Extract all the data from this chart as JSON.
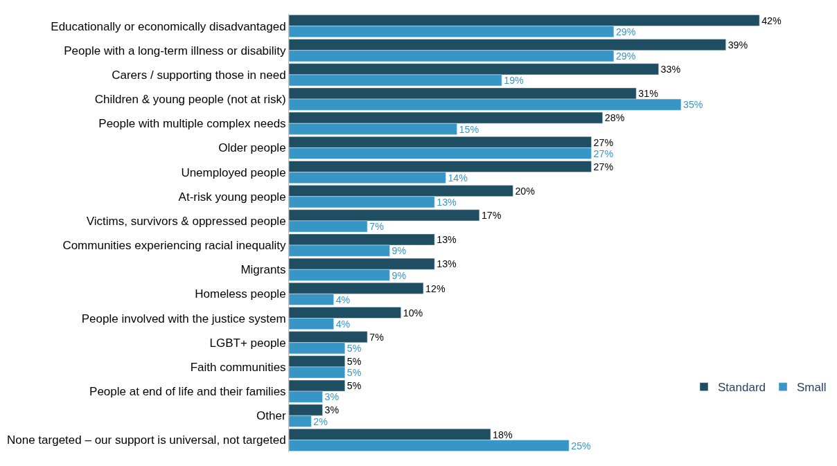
{
  "chart_data": {
    "type": "bar",
    "orientation": "horizontal",
    "categories": [
      "Educationally or economically disadvantaged",
      "People with a long-term illness or disability",
      "Carers / supporting those in need",
      "Children & young people (not at risk)",
      "People with multiple complex needs",
      "Older people",
      "Unemployed people",
      "At-risk young people",
      "Victims, survivors & oppressed people",
      "Communities experiencing racial inequality",
      "Migrants",
      "Homeless people",
      "People involved with the justice system",
      "LGBT+ people",
      "Faith communities",
      "People at end of life and their families",
      "Other",
      "None targeted – our support is universal, not targeted"
    ],
    "series": [
      {
        "name": "Standard",
        "color": "#1f4e63",
        "values": [
          42,
          39,
          33,
          31,
          28,
          27,
          27,
          20,
          17,
          13,
          13,
          12,
          10,
          7,
          5,
          5,
          3,
          18
        ],
        "value_labels": [
          "42%",
          "39%",
          "33%",
          "31%",
          "28%",
          "27%",
          "27%",
          "20%",
          "17%",
          "13%",
          "13%",
          "12%",
          "10%",
          "7%",
          "5%",
          "5%",
          "3%",
          "18%"
        ]
      },
      {
        "name": "Small",
        "color": "#3796c5",
        "values": [
          29,
          29,
          19,
          35,
          15,
          27,
          14,
          13,
          7,
          9,
          9,
          4,
          4,
          5,
          5,
          3,
          2,
          25
        ],
        "value_labels": [
          "29%",
          "29%",
          "19%",
          "35%",
          "15%",
          "27%",
          "14%",
          "13%",
          "7%",
          "9%",
          "9%",
          "4%",
          "4%",
          "5%",
          "5%",
          "3%",
          "2%",
          "25%"
        ]
      }
    ],
    "legend": "bottom right",
    "tick_labels": "y"
  }
}
